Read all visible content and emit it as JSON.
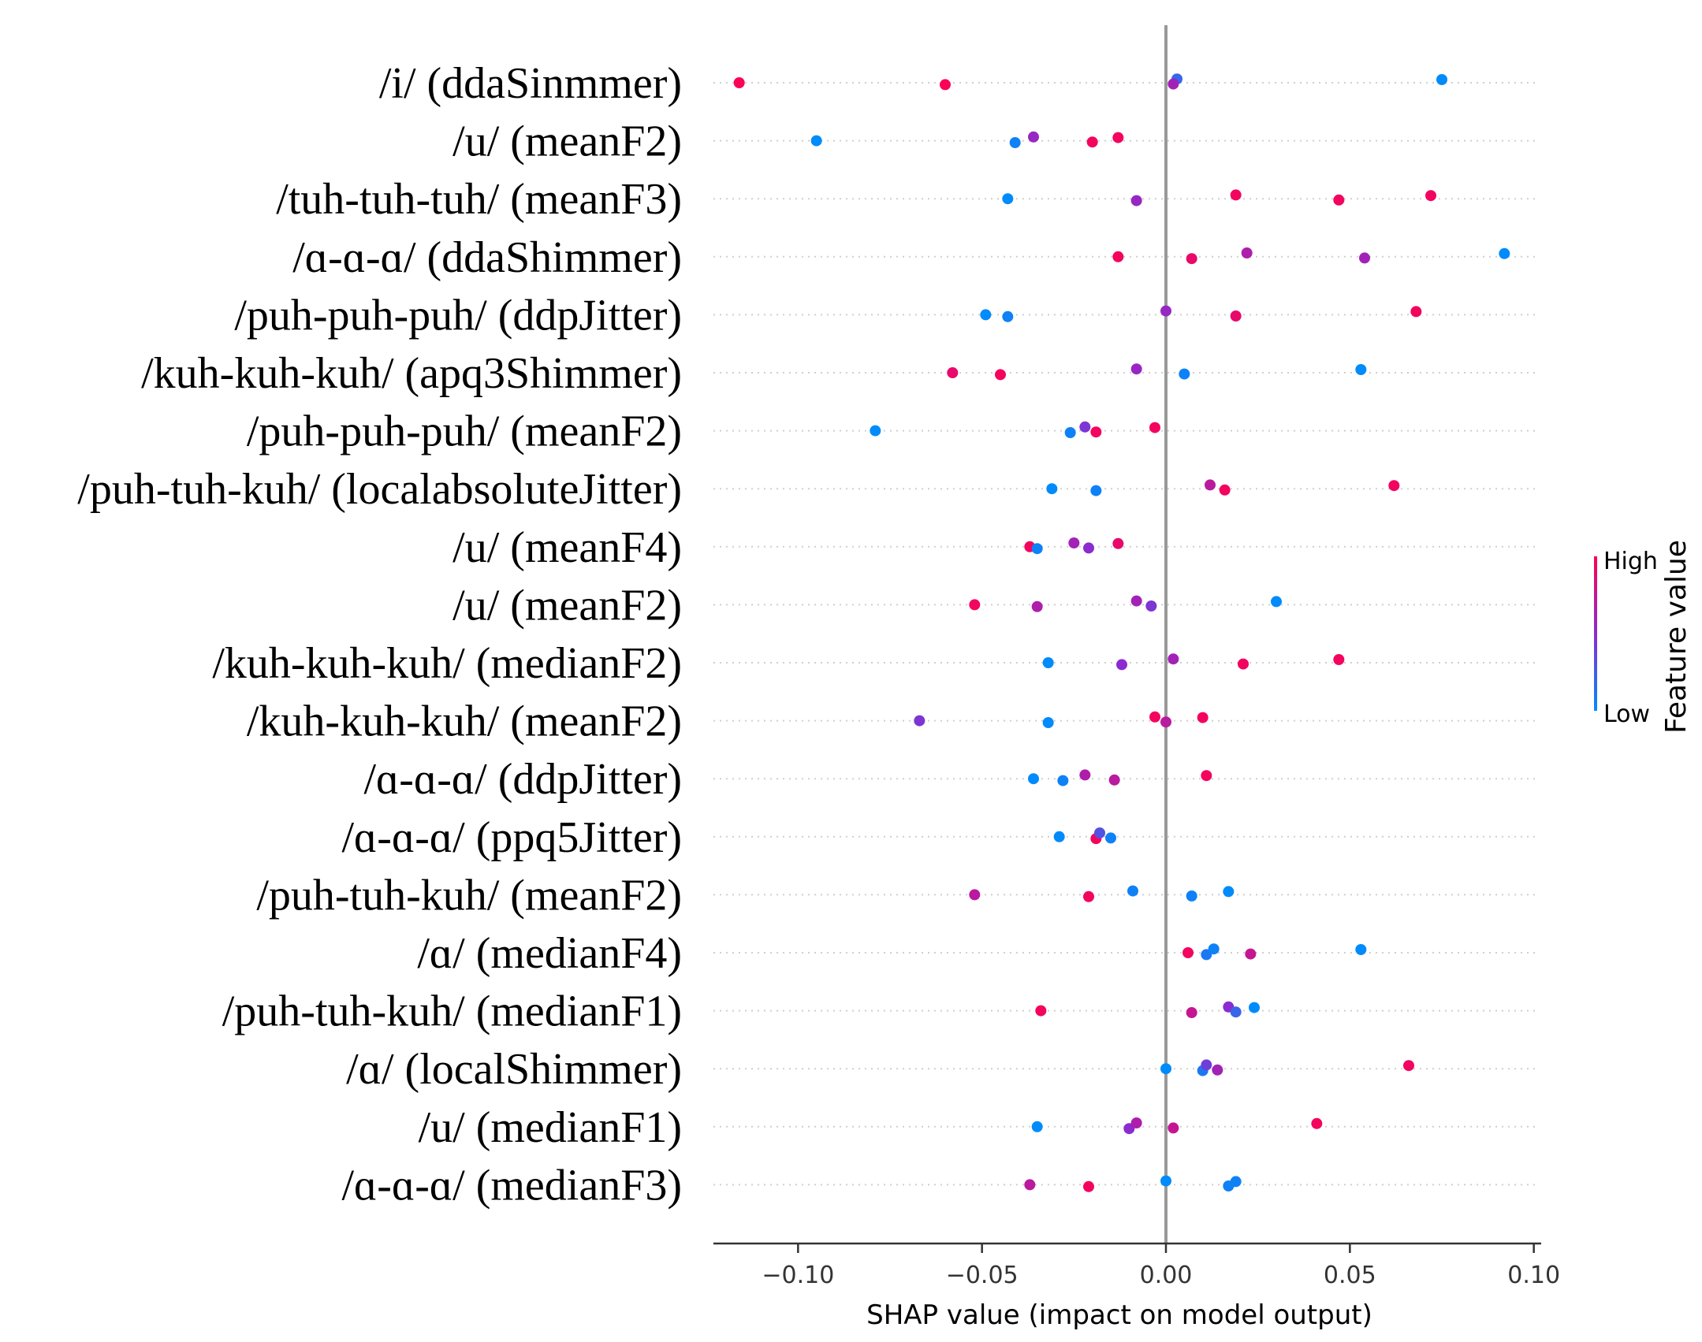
{
  "chart_data": {
    "type": "scatter",
    "subtype": "shap-beeswarm",
    "xlabel": "SHAP value (impact on model output)",
    "xlim": [
      -0.123,
      0.102
    ],
    "xticks": [
      -0.1,
      -0.05,
      0.0,
      0.05,
      0.1
    ],
    "xtick_labels": [
      "−0.10",
      "−0.05",
      "0.00",
      "0.05",
      "0.10"
    ],
    "colorbar": {
      "title": "Feature value",
      "high_label": "High",
      "low_label": "Low",
      "high_color": "#ff0052",
      "mid_color": "#8b2bd0",
      "low_color": "#008bfb"
    },
    "features": [
      {
        "label": "/i/ (ddaSinmmer)",
        "points": [
          [
            -0.116,
            0.98
          ],
          [
            -0.06,
            0.98
          ],
          [
            0.003,
            0.2
          ],
          [
            0.002,
            0.6
          ],
          [
            0.075,
            0.0
          ]
        ]
      },
      {
        "label": "/u/ (meanF2)",
        "points": [
          [
            -0.095,
            0.0
          ],
          [
            -0.041,
            0.05
          ],
          [
            -0.036,
            0.55
          ],
          [
            -0.02,
            0.95
          ],
          [
            -0.013,
            0.95
          ]
        ]
      },
      {
        "label": "/tuh-tuh-tuh/ (meanF3)",
        "points": [
          [
            -0.043,
            0.0
          ],
          [
            -0.008,
            0.55
          ],
          [
            0.019,
            0.95
          ],
          [
            0.047,
            0.95
          ],
          [
            0.072,
            0.95
          ]
        ]
      },
      {
        "label": "/ɑ-ɑ-ɑ/ (ddaShimmer)",
        "points": [
          [
            -0.013,
            0.95
          ],
          [
            0.007,
            0.9
          ],
          [
            0.022,
            0.65
          ],
          [
            0.054,
            0.6
          ],
          [
            0.092,
            0.0
          ]
        ]
      },
      {
        "label": "/puh-puh-puh/ (ddpJitter)",
        "points": [
          [
            -0.049,
            0.0
          ],
          [
            -0.043,
            0.05
          ],
          [
            0.0,
            0.55
          ],
          [
            0.019,
            0.9
          ],
          [
            0.068,
            0.95
          ]
        ]
      },
      {
        "label": "/kuh-kuh-kuh/ (apq3Shimmer)",
        "points": [
          [
            -0.058,
            0.9
          ],
          [
            -0.045,
            0.95
          ],
          [
            -0.008,
            0.55
          ],
          [
            0.005,
            0.05
          ],
          [
            0.053,
            0.0
          ]
        ]
      },
      {
        "label": "/puh-puh-puh/ (meanF2)",
        "points": [
          [
            -0.079,
            0.0
          ],
          [
            -0.026,
            0.05
          ],
          [
            -0.022,
            0.45
          ],
          [
            -0.019,
            0.95
          ],
          [
            -0.003,
            0.95
          ]
        ]
      },
      {
        "label": "/puh-tuh-kuh/ (localabsoluteJitter)",
        "points": [
          [
            -0.031,
            0.0
          ],
          [
            -0.019,
            0.05
          ],
          [
            0.012,
            0.7
          ],
          [
            0.016,
            0.95
          ],
          [
            0.062,
            0.95
          ]
        ]
      },
      {
        "label": "/u/ (meanF4)",
        "points": [
          [
            -0.037,
            0.95
          ],
          [
            -0.035,
            0.05
          ],
          [
            -0.025,
            0.6
          ],
          [
            -0.021,
            0.5
          ],
          [
            -0.013,
            0.9
          ]
        ]
      },
      {
        "label": "/u/ (meanF2)",
        "points": [
          [
            -0.052,
            0.95
          ],
          [
            -0.035,
            0.65
          ],
          [
            -0.008,
            0.6
          ],
          [
            -0.004,
            0.45
          ],
          [
            0.03,
            0.0
          ]
        ]
      },
      {
        "label": "/kuh-kuh-kuh/ (medianF2)",
        "points": [
          [
            -0.032,
            0.0
          ],
          [
            -0.012,
            0.5
          ],
          [
            0.002,
            0.6
          ],
          [
            0.021,
            0.95
          ],
          [
            0.047,
            0.95
          ]
        ]
      },
      {
        "label": "/kuh-kuh-kuh/ (meanF2)",
        "points": [
          [
            -0.067,
            0.45
          ],
          [
            -0.032,
            0.0
          ],
          [
            -0.003,
            0.95
          ],
          [
            0.0,
            0.7
          ],
          [
            0.01,
            0.95
          ]
        ]
      },
      {
        "label": "/ɑ-ɑ-ɑ/ (ddpJitter)",
        "points": [
          [
            -0.036,
            0.0
          ],
          [
            -0.028,
            0.05
          ],
          [
            -0.022,
            0.65
          ],
          [
            -0.014,
            0.7
          ],
          [
            0.011,
            0.95
          ]
        ]
      },
      {
        "label": "/ɑ-ɑ-ɑ/ (ppq5Jitter)",
        "points": [
          [
            -0.029,
            0.0
          ],
          [
            -0.019,
            0.95
          ],
          [
            -0.018,
            0.3
          ],
          [
            -0.015,
            0.05
          ]
        ]
      },
      {
        "label": "/puh-tuh-kuh/ (meanF2)",
        "points": [
          [
            -0.052,
            0.7
          ],
          [
            -0.021,
            0.95
          ],
          [
            -0.009,
            0.05
          ],
          [
            0.007,
            0.05
          ],
          [
            0.017,
            0.0
          ]
        ]
      },
      {
        "label": "/ɑ/ (medianF4)",
        "points": [
          [
            0.006,
            0.95
          ],
          [
            0.011,
            0.1
          ],
          [
            0.013,
            0.05
          ],
          [
            0.023,
            0.75
          ],
          [
            0.053,
            0.0
          ]
        ]
      },
      {
        "label": "/puh-tuh-kuh/ (medianF1)",
        "points": [
          [
            -0.034,
            0.95
          ],
          [
            0.007,
            0.75
          ],
          [
            0.017,
            0.5
          ],
          [
            0.019,
            0.2
          ],
          [
            0.024,
            0.0
          ]
        ]
      },
      {
        "label": "/ɑ/ (localShimmer)",
        "points": [
          [
            0.0,
            0.0
          ],
          [
            0.01,
            0.1
          ],
          [
            0.011,
            0.4
          ],
          [
            0.014,
            0.6
          ],
          [
            0.066,
            0.95
          ]
        ]
      },
      {
        "label": "/u/ (medianF1)",
        "points": [
          [
            -0.035,
            0.0
          ],
          [
            -0.01,
            0.5
          ],
          [
            -0.008,
            0.65
          ],
          [
            0.002,
            0.75
          ],
          [
            0.041,
            0.95
          ]
        ]
      },
      {
        "label": "/ɑ-ɑ-ɑ/ (medianF3)",
        "points": [
          [
            -0.037,
            0.7
          ],
          [
            -0.021,
            0.95
          ],
          [
            0.0,
            0.0
          ],
          [
            0.017,
            0.05
          ],
          [
            0.019,
            0.05
          ]
        ]
      }
    ]
  }
}
